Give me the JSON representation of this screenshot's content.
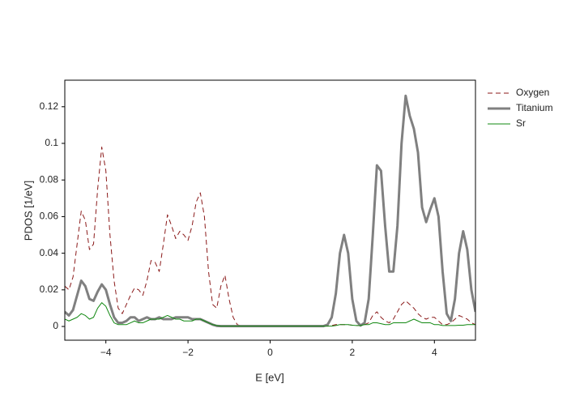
{
  "chart_data": {
    "type": "line",
    "x_label": "E [eV]",
    "y_label": "PDOS [1/eV]",
    "x": [
      -5.0,
      -4.9,
      -4.8,
      -4.7,
      -4.6,
      -4.5,
      -4.4,
      -4.3,
      -4.2,
      -4.1,
      -4.0,
      -3.9,
      -3.8,
      -3.7,
      -3.6,
      -3.5,
      -3.4,
      -3.3,
      -3.2,
      -3.1,
      -3.0,
      -2.9,
      -2.8,
      -2.7,
      -2.6,
      -2.5,
      -2.4,
      -2.3,
      -2.2,
      -2.1,
      -2.0,
      -1.9,
      -1.8,
      -1.7,
      -1.6,
      -1.5,
      -1.4,
      -1.3,
      -1.2,
      -1.1,
      -1.0,
      -0.9,
      -0.8,
      -0.7,
      -0.6,
      -0.5,
      -0.4,
      -0.3,
      -0.2,
      -0.1,
      0.0,
      0.1,
      0.2,
      0.3,
      0.4,
      0.5,
      0.6,
      0.7,
      0.8,
      0.9,
      1.0,
      1.1,
      1.2,
      1.3,
      1.4,
      1.5,
      1.6,
      1.7,
      1.8,
      1.9,
      2.0,
      2.1,
      2.2,
      2.3,
      2.4,
      2.5,
      2.6,
      2.7,
      2.8,
      2.9,
      3.0,
      3.1,
      3.2,
      3.3,
      3.4,
      3.5,
      3.6,
      3.7,
      3.8,
      3.9,
      4.0,
      4.1,
      4.2,
      4.3,
      4.4,
      4.5,
      4.6,
      4.7,
      4.8,
      4.9,
      5.0
    ],
    "series": [
      {
        "name": "Oxygen",
        "color": "#8b1a1a",
        "width": 1,
        "dashed": true,
        "values": [
          0.022,
          0.02,
          0.027,
          0.045,
          0.063,
          0.058,
          0.042,
          0.045,
          0.075,
          0.098,
          0.085,
          0.05,
          0.025,
          0.01,
          0.007,
          0.012,
          0.017,
          0.021,
          0.02,
          0.017,
          0.025,
          0.036,
          0.035,
          0.03,
          0.045,
          0.061,
          0.055,
          0.048,
          0.052,
          0.05,
          0.047,
          0.055,
          0.068,
          0.073,
          0.06,
          0.03,
          0.012,
          0.01,
          0.022,
          0.028,
          0.015,
          0.005,
          0.001,
          0.0003,
          0.0002,
          0.0002,
          0.0002,
          0.0002,
          0.0002,
          0.0002,
          0.0002,
          0.0002,
          0.0002,
          0.0002,
          0.0002,
          0.0002,
          0.0002,
          0.0002,
          0.0002,
          0.0002,
          0.0002,
          0.0002,
          0.0002,
          0.0002,
          0.0002,
          0.0005,
          0.001,
          0.001,
          0.001,
          0.001,
          0.0007,
          0.0005,
          0.0005,
          0.001,
          0.002,
          0.006,
          0.008,
          0.005,
          0.003,
          0.002,
          0.004,
          0.008,
          0.012,
          0.014,
          0.012,
          0.01,
          0.007,
          0.005,
          0.004,
          0.005,
          0.005,
          0.003,
          0.001,
          0.001,
          0.002,
          0.004,
          0.006,
          0.005,
          0.004,
          0.002,
          0.001
        ]
      },
      {
        "name": "Titanium",
        "color": "#808080",
        "width": 3,
        "dashed": false,
        "values": [
          0.008,
          0.006,
          0.009,
          0.017,
          0.025,
          0.022,
          0.015,
          0.014,
          0.019,
          0.023,
          0.02,
          0.012,
          0.005,
          0.002,
          0.002,
          0.003,
          0.005,
          0.005,
          0.003,
          0.004,
          0.005,
          0.004,
          0.004,
          0.005,
          0.004,
          0.004,
          0.004,
          0.005,
          0.005,
          0.005,
          0.005,
          0.004,
          0.004,
          0.004,
          0.003,
          0.002,
          0.001,
          0.0003,
          0.0002,
          0.0002,
          0.0002,
          0.0002,
          0.0002,
          0.0002,
          0.0002,
          0.0002,
          0.0002,
          0.0002,
          0.0002,
          0.0002,
          0.0002,
          0.0002,
          0.0002,
          0.0002,
          0.0002,
          0.0002,
          0.0002,
          0.0002,
          0.0002,
          0.0002,
          0.0002,
          0.0002,
          0.0002,
          0.0002,
          0.001,
          0.005,
          0.018,
          0.04,
          0.05,
          0.04,
          0.015,
          0.003,
          0.0005,
          0.002,
          0.015,
          0.05,
          0.088,
          0.085,
          0.055,
          0.03,
          0.03,
          0.055,
          0.1,
          0.126,
          0.115,
          0.108,
          0.095,
          0.065,
          0.057,
          0.064,
          0.07,
          0.06,
          0.03,
          0.007,
          0.003,
          0.015,
          0.04,
          0.052,
          0.042,
          0.02,
          0.008
        ]
      },
      {
        "name": "Sr",
        "color": "#118811",
        "width": 1,
        "dashed": false,
        "values": [
          0.004,
          0.003,
          0.004,
          0.005,
          0.007,
          0.006,
          0.004,
          0.005,
          0.01,
          0.013,
          0.011,
          0.006,
          0.002,
          0.001,
          0.001,
          0.001,
          0.002,
          0.003,
          0.002,
          0.002,
          0.003,
          0.004,
          0.004,
          0.004,
          0.005,
          0.006,
          0.005,
          0.004,
          0.004,
          0.003,
          0.003,
          0.003,
          0.004,
          0.004,
          0.003,
          0.002,
          0.001,
          0.0005,
          0.0002,
          0.0002,
          0.0002,
          0.0002,
          0.0002,
          0.0002,
          0.0002,
          0.0002,
          0.0002,
          0.0002,
          0.0002,
          0.0002,
          0.0002,
          0.0002,
          0.0002,
          0.0002,
          0.0002,
          0.0002,
          0.0002,
          0.0002,
          0.0002,
          0.0002,
          0.0002,
          0.0002,
          0.0002,
          0.0002,
          0.0002,
          0.0002,
          0.0005,
          0.001,
          0.001,
          0.001,
          0.0007,
          0.0005,
          0.0005,
          0.001,
          0.001,
          0.002,
          0.002,
          0.0015,
          0.001,
          0.001,
          0.002,
          0.002,
          0.002,
          0.002,
          0.003,
          0.004,
          0.003,
          0.002,
          0.002,
          0.002,
          0.001,
          0.001,
          0.0005,
          0.0005,
          0.0005,
          0.0005,
          0.0007,
          0.0007,
          0.001,
          0.001,
          0.001
        ]
      }
    ],
    "xlim": [
      -5,
      5
    ],
    "ylim": [
      -0.0075,
      0.1345
    ],
    "xticks": [
      {
        "value": -4,
        "label": "−4"
      },
      {
        "value": -2,
        "label": "−2"
      },
      0,
      2,
      4
    ],
    "yticks": [
      0,
      0.02,
      0.04,
      0.06,
      0.08,
      0.1,
      0.12
    ],
    "grid": false,
    "legend": "outside-right"
  }
}
